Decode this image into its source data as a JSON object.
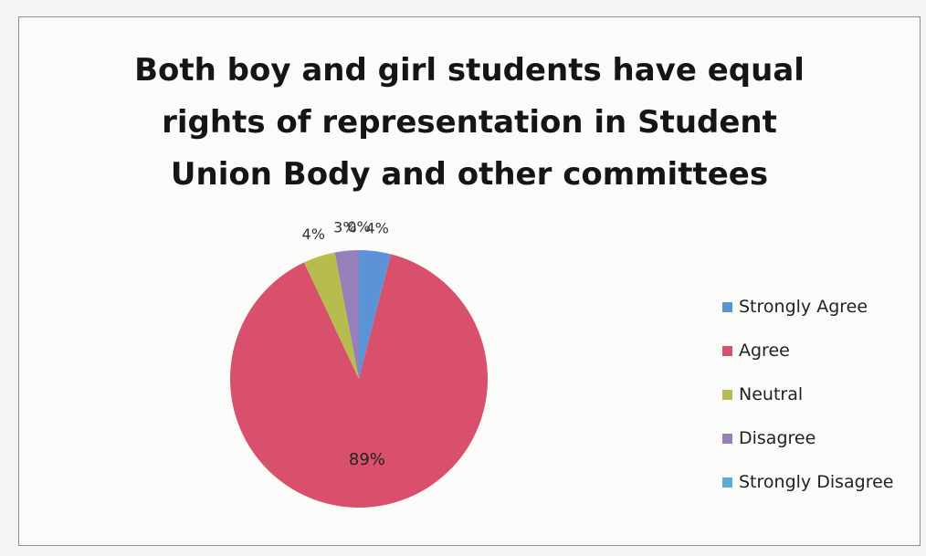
{
  "chart_data": {
    "type": "pie",
    "title_lines": [
      "Both boy and girl students have equal",
      "rights of representation in Student",
      "Union Body and other committees"
    ],
    "slices": [
      {
        "label": "Strongly Agree",
        "value": 4,
        "data_label": "4%",
        "color": "#5b93d6"
      },
      {
        "label": "Agree",
        "value": 89,
        "data_label": "89%",
        "color": "#d8506b"
      },
      {
        "label": "Neutral",
        "value": 4,
        "data_label": "4%",
        "color": "#b7bc4f"
      },
      {
        "label": "Disagree",
        "value": 3,
        "data_label": "3%",
        "color": "#9680b8"
      },
      {
        "label": "Strongly Disagree",
        "value": 0,
        "data_label": "0%",
        "color": "#5aaed2"
      }
    ],
    "legend_position": "right"
  }
}
